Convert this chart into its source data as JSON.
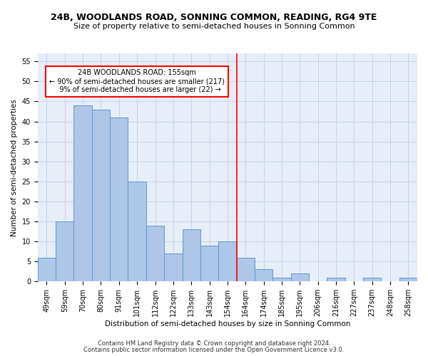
{
  "title": "24B, WOODLANDS ROAD, SONNING COMMON, READING, RG4 9TE",
  "subtitle": "Size of property relative to semi-detached houses in Sonning Common",
  "xlabel": "Distribution of semi-detached houses by size in Sonning Common",
  "ylabel": "Number of semi-detached properties",
  "categories": [
    "49sqm",
    "59sqm",
    "70sqm",
    "80sqm",
    "91sqm",
    "101sqm",
    "112sqm",
    "122sqm",
    "133sqm",
    "143sqm",
    "154sqm",
    "164sqm",
    "174sqm",
    "185sqm",
    "195sqm",
    "206sqm",
    "216sqm",
    "227sqm",
    "237sqm",
    "248sqm",
    "258sqm"
  ],
  "values": [
    6,
    15,
    44,
    43,
    41,
    25,
    14,
    7,
    13,
    9,
    10,
    6,
    3,
    1,
    2,
    0,
    1,
    0,
    1,
    0,
    1
  ],
  "bar_color": "#aec6e8",
  "bar_edge_color": "#5b9bd5",
  "reference_line_idx": 10,
  "reference_label": "24B WOODLANDS ROAD: 155sqm",
  "pct_smaller": "90% of semi-detached houses are smaller (217)",
  "pct_larger": "9% of semi-detached houses are larger (22)",
  "ylim": [
    0,
    57
  ],
  "yticks": [
    0,
    5,
    10,
    15,
    20,
    25,
    30,
    35,
    40,
    45,
    50,
    55
  ],
  "footnote1": "Contains HM Land Registry data © Crown copyright and database right 2024.",
  "footnote2": "Contains public sector information licensed under the Open Government Licence v3.0.",
  "bg_color": "#e8eef8",
  "grid_color": "#c8d4e8",
  "title_fontsize": 9,
  "subtitle_fontsize": 8,
  "axis_label_fontsize": 7.5,
  "tick_fontsize": 7,
  "footnote_fontsize": 6
}
